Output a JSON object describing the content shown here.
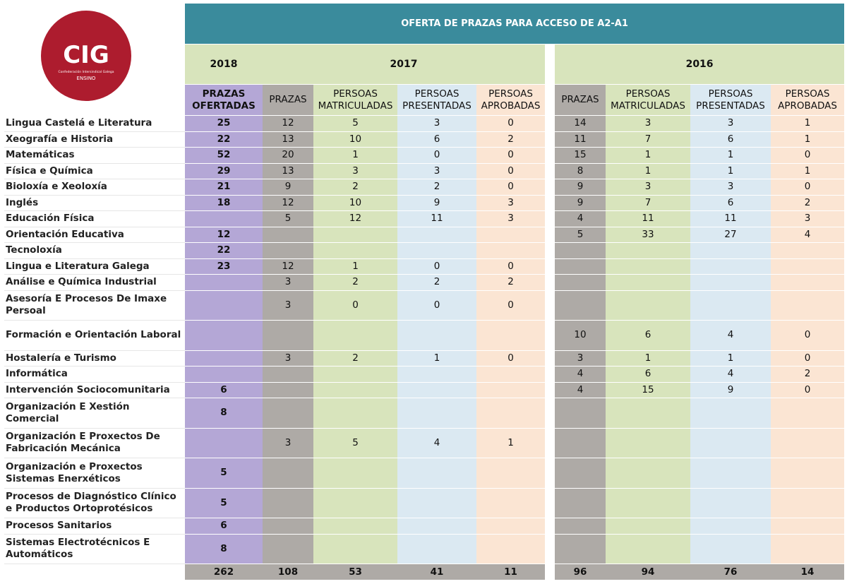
{
  "logo": {
    "name": "CIG",
    "subtitle": "Confederación Intersindical Galega",
    "section": "ENSINO"
  },
  "table": {
    "title": "OFERTA DE PRAZAS PARA ACCESO DE A2-A1",
    "years": [
      "2018",
      "2017",
      "2016"
    ],
    "header_2018": "PRAZAS OFERTADAS",
    "headers": [
      "PRAZAS",
      "PERSOAS MATRICULADAS",
      "PERSOAS PRESENTADAS",
      "PERSOAS APROBADAS"
    ],
    "rows": [
      {
        "subject": "Lingua Castelá e Literatura",
        "values": [
          25,
          12,
          5,
          3,
          0,
          14,
          3,
          3,
          1
        ]
      },
      {
        "subject": "Xeografía e Historia",
        "values": [
          22,
          13,
          10,
          6,
          2,
          11,
          7,
          6,
          1
        ]
      },
      {
        "subject": "Matemáticas",
        "values": [
          52,
          20,
          1,
          0,
          0,
          15,
          1,
          1,
          0
        ]
      },
      {
        "subject": "Física e Química",
        "values": [
          29,
          13,
          3,
          3,
          0,
          8,
          1,
          1,
          1
        ]
      },
      {
        "subject": "Bioloxía e Xeoloxía",
        "values": [
          21,
          9,
          2,
          2,
          0,
          9,
          3,
          3,
          0
        ]
      },
      {
        "subject": "Inglés",
        "values": [
          18,
          12,
          10,
          9,
          3,
          9,
          7,
          6,
          2
        ]
      },
      {
        "subject": "Educación Física",
        "values": [
          null,
          5,
          12,
          11,
          3,
          4,
          11,
          11,
          3
        ]
      },
      {
        "subject": "Orientación Educativa",
        "values": [
          12,
          null,
          null,
          null,
          null,
          5,
          33,
          27,
          4
        ]
      },
      {
        "subject": "Tecnoloxía",
        "values": [
          22,
          null,
          null,
          null,
          null,
          null,
          null,
          null,
          null
        ]
      },
      {
        "subject": "Lingua e Literatura Galega",
        "values": [
          23,
          12,
          1,
          0,
          0,
          null,
          null,
          null,
          null
        ]
      },
      {
        "subject": "Análise e Química Industrial",
        "values": [
          null,
          3,
          2,
          2,
          2,
          null,
          null,
          null,
          null
        ]
      },
      {
        "subject": "Asesoría E Procesos De Imaxe Persoal",
        "values": [
          null,
          3,
          0,
          0,
          0,
          null,
          null,
          null,
          null
        ]
      },
      {
        "subject": "Formación e Orientación Laboral",
        "values": [
          null,
          null,
          null,
          null,
          null,
          10,
          6,
          4,
          0
        ]
      },
      {
        "subject": "Hostalería e Turismo",
        "values": [
          null,
          3,
          2,
          1,
          0,
          3,
          1,
          1,
          0
        ]
      },
      {
        "subject": "Informática",
        "values": [
          null,
          null,
          null,
          null,
          null,
          4,
          6,
          4,
          2
        ]
      },
      {
        "subject": "Intervención Sociocomunitaria",
        "values": [
          6,
          null,
          null,
          null,
          null,
          4,
          15,
          9,
          0
        ]
      },
      {
        "subject": "Organización E Xestión Comercial",
        "values": [
          8,
          null,
          null,
          null,
          null,
          null,
          null,
          null,
          null
        ]
      },
      {
        "subject": "Organización  E Proxectos De Fabricación Mecánica",
        "values": [
          null,
          3,
          5,
          4,
          1,
          null,
          null,
          null,
          null
        ]
      },
      {
        "subject": "Organización e Proxectos Sistemas Enerxéticos",
        "values": [
          5,
          null,
          null,
          null,
          null,
          null,
          null,
          null,
          null
        ]
      },
      {
        "subject": "Procesos de Diagnóstico Clínico e Productos Ortoprotésicos",
        "values": [
          5,
          null,
          null,
          null,
          null,
          null,
          null,
          null,
          null
        ]
      },
      {
        "subject": "Procesos Sanitarios",
        "values": [
          6,
          null,
          null,
          null,
          null,
          null,
          null,
          null,
          null
        ]
      },
      {
        "subject": "Sistemas Electrotécnicos E Automáticos",
        "values": [
          8,
          null,
          null,
          null,
          null,
          null,
          null,
          null,
          null
        ]
      }
    ],
    "totals": [
      262,
      108,
      53,
      41,
      11,
      96,
      94,
      76,
      14
    ]
  }
}
